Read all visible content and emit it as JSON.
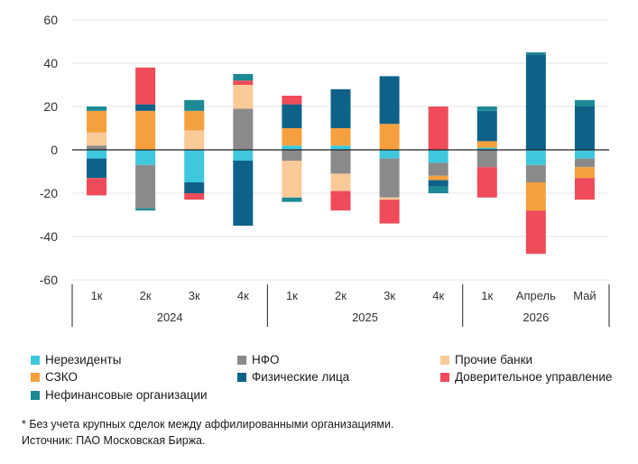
{
  "chart_data": {
    "type": "bar",
    "stacked": true,
    "title": "",
    "xlabel": "",
    "ylabel": "",
    "ylim": [
      -60,
      60
    ],
    "yticks": [
      60,
      40,
      20,
      0,
      -20,
      -40,
      -60
    ],
    "grid": true,
    "legend_position": "bottom",
    "categories": [
      "1к",
      "2к",
      "3к",
      "4к",
      "1к",
      "2к",
      "3к",
      "4к",
      "1к",
      "Апрель",
      "Май"
    ],
    "groups": [
      {
        "label": "2024",
        "count": 4
      },
      {
        "label": "2025",
        "count": 4
      },
      {
        "label": "2026",
        "count": 3
      }
    ],
    "series": [
      {
        "name": "Нерезиденты",
        "color": "#3fc8dd",
        "values": [
          -4,
          -7,
          -15,
          -5,
          2,
          2,
          -4,
          -6,
          1,
          -7,
          -4
        ]
      },
      {
        "name": "НФО",
        "color": "#8a8a8a",
        "values": [
          2,
          -20,
          0,
          19,
          -5,
          -11,
          -18,
          -6,
          -8,
          -8,
          -4
        ]
      },
      {
        "name": "Прочие банки",
        "color": "#f9c998",
        "values": [
          6,
          0,
          9,
          11,
          -17,
          -8,
          -1,
          0,
          0,
          0,
          0
        ]
      },
      {
        "name": "СЗКО",
        "color": "#f5a03e",
        "values": [
          10,
          18,
          9,
          0,
          8,
          8,
          12,
          -2,
          3,
          -13,
          -5
        ]
      },
      {
        "name": "Физические лица",
        "color": "#0e6288",
        "values": [
          -9,
          3,
          -5,
          -30,
          11,
          18,
          22,
          -3,
          14,
          44,
          20
        ]
      },
      {
        "name": "Доверительное управление",
        "color": "#ef4b5a",
        "values": [
          -8,
          17,
          -3,
          2,
          4,
          -9,
          -11,
          20,
          -14,
          -20,
          -10
        ]
      },
      {
        "name": "Нефинансовые организации",
        "color": "#1c8994",
        "values": [
          2,
          -1,
          5,
          3,
          -2,
          0,
          0,
          -3,
          2,
          1,
          3
        ]
      }
    ]
  },
  "legend": [
    {
      "label": "Нерезиденты",
      "color": "#3fc8dd"
    },
    {
      "label": "НФО",
      "color": "#8a8a8a"
    },
    {
      "label": "Прочие банки",
      "color": "#f9c998"
    },
    {
      "label": "СЗКО",
      "color": "#f5a03e"
    },
    {
      "label": "Физические лица",
      "color": "#0e6288"
    },
    {
      "label": "Доверительное управление",
      "color": "#ef4b5a"
    },
    {
      "label": "Нефинансовые организации",
      "color": "#1c8994"
    }
  ],
  "footnote": {
    "line1": "* Без учета крупных сделок между аффилированными организациями.",
    "line2": "Источник: ПАО Московская Биржа."
  }
}
